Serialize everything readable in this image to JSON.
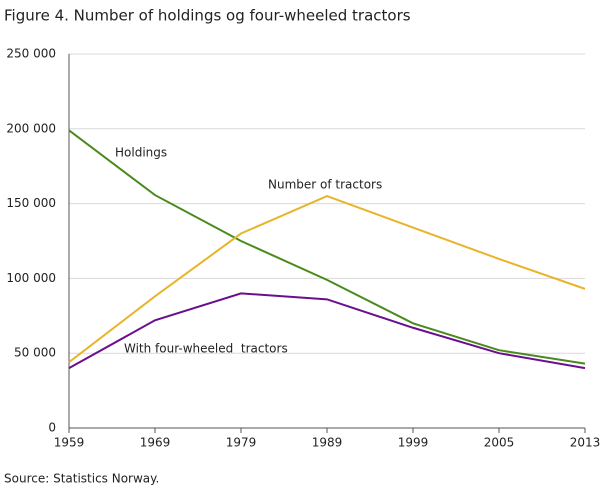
{
  "chart_data": {
    "type": "line",
    "title": "Figure 4. Number of holdings og four-wheeled tractors",
    "source": "Source: Statistics Norway.",
    "categories": [
      "1959",
      "1969",
      "1979",
      "1989",
      "1999",
      "2005",
      "2013"
    ],
    "series": [
      {
        "name": "Holdings",
        "color": "#4a8a1c",
        "values": [
          199000,
          155700,
          125000,
          99000,
          70000,
          52000,
          43000
        ]
      },
      {
        "name": "Number of tractors",
        "color": "#e8b42a",
        "values": [
          44000,
          88000,
          130000,
          155000,
          134000,
          113000,
          93000
        ]
      },
      {
        "name": "With four-wheeled  tractors",
        "color": "#6a0f8e",
        "values": [
          40000,
          72000,
          90000,
          86000,
          67000,
          50000,
          40000
        ]
      }
    ],
    "ylim": [
      0,
      250000
    ],
    "yticks": [
      0,
      {
        "value": 50000,
        "label": "50 000"
      },
      {
        "value": 100000,
        "label": "100 000"
      },
      {
        "value": 150000,
        "label": "150 000"
      },
      {
        "value": 200000,
        "label": "200 000"
      },
      {
        "value": 250000,
        "label": "250 000"
      }
    ],
    "grid": true
  }
}
